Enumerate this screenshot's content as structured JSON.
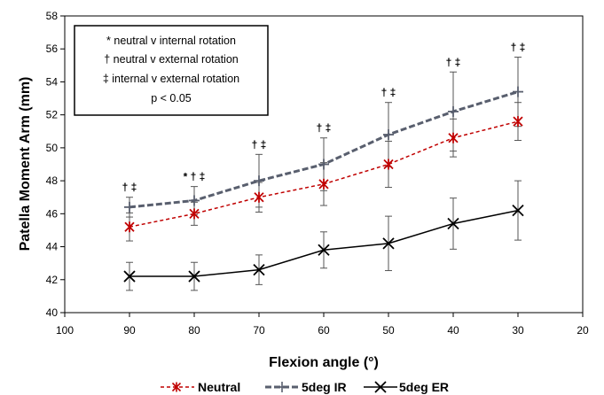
{
  "chart_data": {
    "type": "line",
    "xlabel": "Flexion angle (°)",
    "ylabel": "Patella  Moment Arm (mm)",
    "xlim": [
      100,
      20
    ],
    "x_reversed": true,
    "ylim": [
      40,
      58
    ],
    "x_ticks": [
      "100",
      "90",
      "80",
      "70",
      "60",
      "50",
      "40",
      "30",
      "20"
    ],
    "y_ticks": [
      "40",
      "42",
      "44",
      "46",
      "48",
      "50",
      "52",
      "54",
      "56",
      "58"
    ],
    "grid": false,
    "legend_position": "bottom",
    "x": [
      90,
      80,
      70,
      60,
      50,
      40,
      30
    ],
    "series": [
      {
        "name": "Neutral",
        "color": "#c00000",
        "line_style": "dashed",
        "marker": "asterisk",
        "values": [
          45.2,
          46.0,
          47.0,
          47.8,
          49.0,
          50.6,
          51.6
        ],
        "error": [
          0.85,
          0.7,
          0.9,
          1.3,
          1.4,
          1.15,
          1.15
        ]
      },
      {
        "name": "5deg IR",
        "color": "#595f6e",
        "line_style": "dashed-bold",
        "marker": "plus",
        "values": [
          46.4,
          46.8,
          48.0,
          49.0,
          50.8,
          52.2,
          53.4
        ],
        "error": [
          0.6,
          0.85,
          1.6,
          1.6,
          1.95,
          2.4,
          2.1
        ]
      },
      {
        "name": "5deg ER",
        "color": "#000000",
        "line_style": "solid",
        "marker": "x",
        "values": [
          42.2,
          42.2,
          42.6,
          43.8,
          44.2,
          45.4,
          46.2
        ],
        "error": [
          0.85,
          0.85,
          0.9,
          1.1,
          1.65,
          1.55,
          1.8
        ]
      }
    ],
    "significance_labels": [
      "† ‡",
      "* † ‡",
      "† ‡",
      "† ‡",
      "† ‡",
      "† ‡",
      "† ‡"
    ],
    "annotation_box": {
      "lines": [
        "* neutral v internal rotation",
        "† neutral v external rotation",
        "‡ internal v external rotation",
        "p < 0.05"
      ]
    }
  }
}
